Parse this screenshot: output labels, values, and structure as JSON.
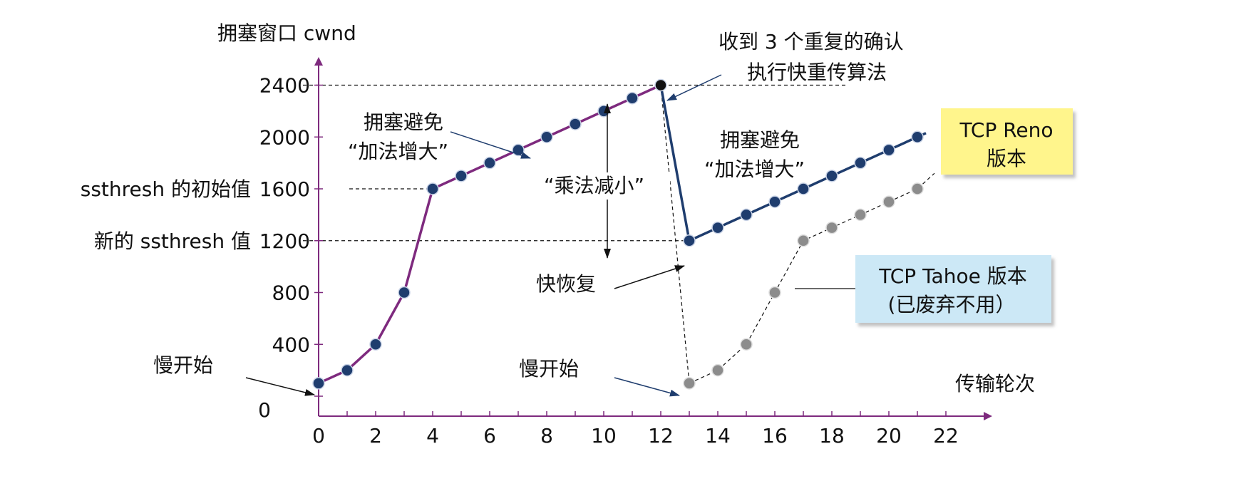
{
  "chart_data": {
    "type": "line",
    "ylabel": "拥塞窗口 cwnd",
    "xlabel": "传输轮次",
    "x_ticks": [
      "0",
      "2",
      "4",
      "6",
      "8",
      "10",
      "12",
      "14",
      "16",
      "18",
      "20",
      "22"
    ],
    "y_ticks": [
      "0",
      "400",
      "800",
      "1200",
      "1600",
      "2000",
      "2400"
    ],
    "xlim": [
      0,
      22
    ],
    "ylim": [
      0,
      2400
    ],
    "series": [
      {
        "name": "TCP Reno 版本",
        "segments": [
          {
            "x": [
              0,
              1,
              2,
              3,
              4,
              5,
              6,
              7,
              8,
              9,
              10,
              11,
              12
            ],
            "y": [
              100,
              200,
              400,
              800,
              1600,
              1700,
              1800,
              1900,
              2000,
              2100,
              2200,
              2300,
              2400
            ],
            "color": "#7e2a7e"
          },
          {
            "x": [
              13,
              14,
              15,
              16,
              17,
              18,
              19,
              20,
              21
            ],
            "y": [
              1200,
              1300,
              1400,
              1500,
              1600,
              1700,
              1800,
              1900,
              2000
            ],
            "color": "#1f3d6e"
          }
        ],
        "marker_color": "#1f3d6e"
      },
      {
        "name": "TCP Tahoe 版本 (已废弃不用）",
        "x": [
          13,
          14,
          15,
          16,
          17,
          18,
          19,
          20,
          21
        ],
        "y": [
          100,
          200,
          400,
          800,
          1200,
          1300,
          1400,
          1500,
          1600
        ],
        "color": "#888888",
        "style": "dashed"
      }
    ],
    "reference_lines": [
      {
        "y": 2400,
        "label": "2400"
      },
      {
        "y": 1600,
        "label": "ssthresh 的初始值"
      },
      {
        "y": 1200,
        "label": "新的 ssthresh 值"
      }
    ],
    "annotations": {
      "triple_ack_line1": "收到 3 个重复的确认",
      "triple_ack_line2": "执行快重传算法",
      "ca_left_line1": "拥塞避免",
      "ca_left_line2": "“加法增大”",
      "ca_right_line1": "拥塞避免",
      "ca_right_line2": "“加法增大”",
      "md": "“乘法减小”",
      "fast_recovery": "快恢复",
      "slow_start_left": "慢开始",
      "slow_start_right": "慢开始",
      "reno_box_line1": "TCP Reno",
      "reno_box_line2": "版本",
      "tahoe_box_line1": "TCP Tahoe 版本",
      "tahoe_box_line2": "(已废弃不用）"
    },
    "colors": {
      "axis": "#7e2a7e",
      "reno_box": "#fff58c",
      "tahoe_box": "#cce8f6",
      "arrow": "#1f3d6e"
    }
  }
}
